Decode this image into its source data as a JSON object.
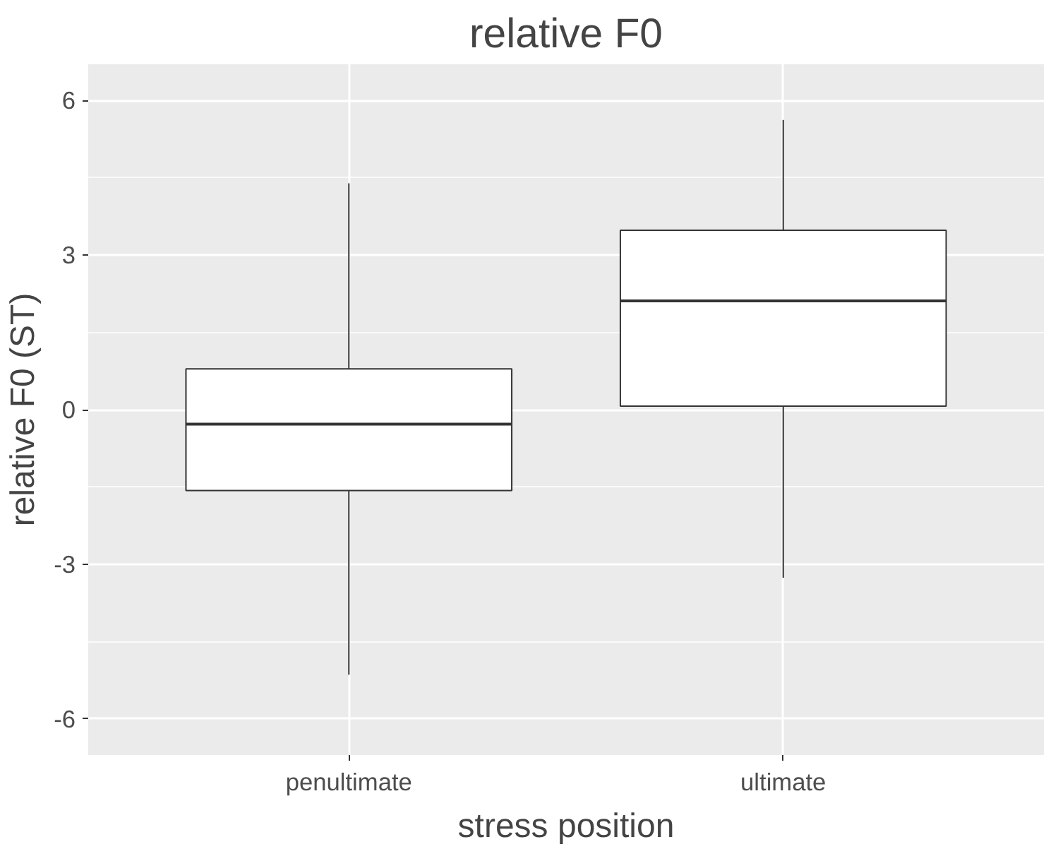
{
  "chart_data": {
    "type": "box",
    "title": "relative F0",
    "xlabel": "stress position",
    "ylabel": "relative F0 (ST)",
    "categories": [
      "penultimate",
      "ultimate"
    ],
    "boxes": [
      {
        "low": -5.14,
        "q1": -1.57,
        "median": -0.28,
        "q3": 0.79,
        "high": 4.39
      },
      {
        "low": -3.26,
        "q1": 0.07,
        "median": 2.11,
        "q3": 3.48,
        "high": 5.62
      }
    ],
    "ylim": [
      -6.7,
      6.7
    ],
    "yticks": [
      -6,
      -3,
      0,
      3,
      6
    ],
    "grid": true
  }
}
